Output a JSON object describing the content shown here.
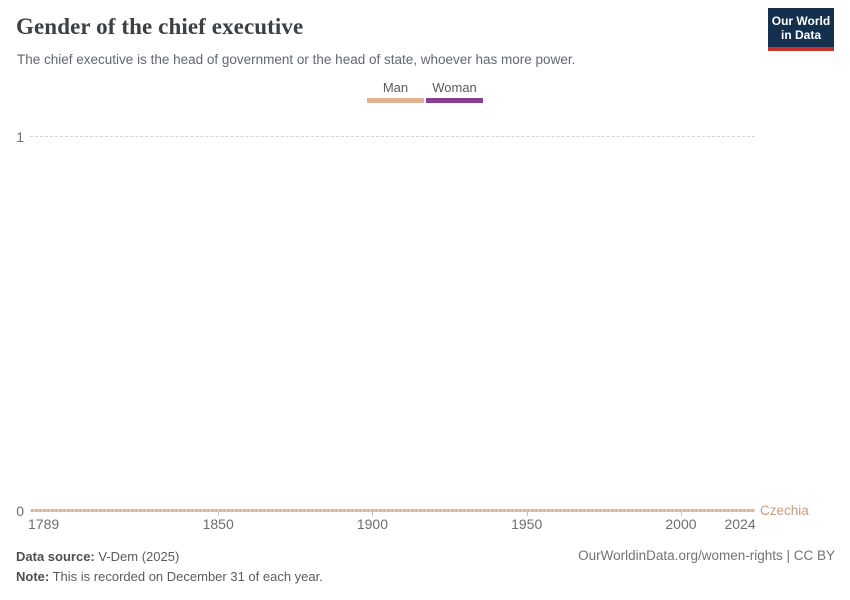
{
  "header": {
    "title": "Gender of the chief executive",
    "subtitle": "The chief executive is the head of government or the head of state, whoever has more power.",
    "logo": {
      "line1": "Our World",
      "line2": "in Data",
      "bg_color": "#15304F",
      "accent_color": "#C4322B"
    }
  },
  "legend": {
    "items": [
      {
        "label": "Man",
        "color": "#E2B294"
      },
      {
        "label": "Woman",
        "color": "#8A3F90"
      }
    ]
  },
  "chart_data": {
    "type": "line",
    "title": "Gender of the chief executive",
    "xlim": [
      1789,
      2024
    ],
    "x_ticks": [
      "1789",
      "1850",
      "1900",
      "1950",
      "2000",
      "2024"
    ],
    "ylim": [
      0,
      1
    ],
    "y_ticks": [
      "0",
      "1"
    ],
    "grid": "single horizontal dashed gridline at y=1",
    "legend_position": "top-center",
    "encoding": "0 = Man, 1 = Woman",
    "series": [
      {
        "name": "Czechia",
        "category": "Man",
        "color": "#E2B294",
        "label_color": "#C79B80",
        "x": [
          1789,
          2024
        ],
        "y": [
          0,
          0
        ],
        "description": "Constant at 0 (Man) every year from 1789 through 2024"
      }
    ]
  },
  "footer": {
    "source_label": "Data source:",
    "source_value": "V-Dem (2025)",
    "note_label": "Note:",
    "note_value": "This is recorded on December 31 of each year.",
    "link": "OurWorldinData.org/women-rights | CC BY"
  }
}
